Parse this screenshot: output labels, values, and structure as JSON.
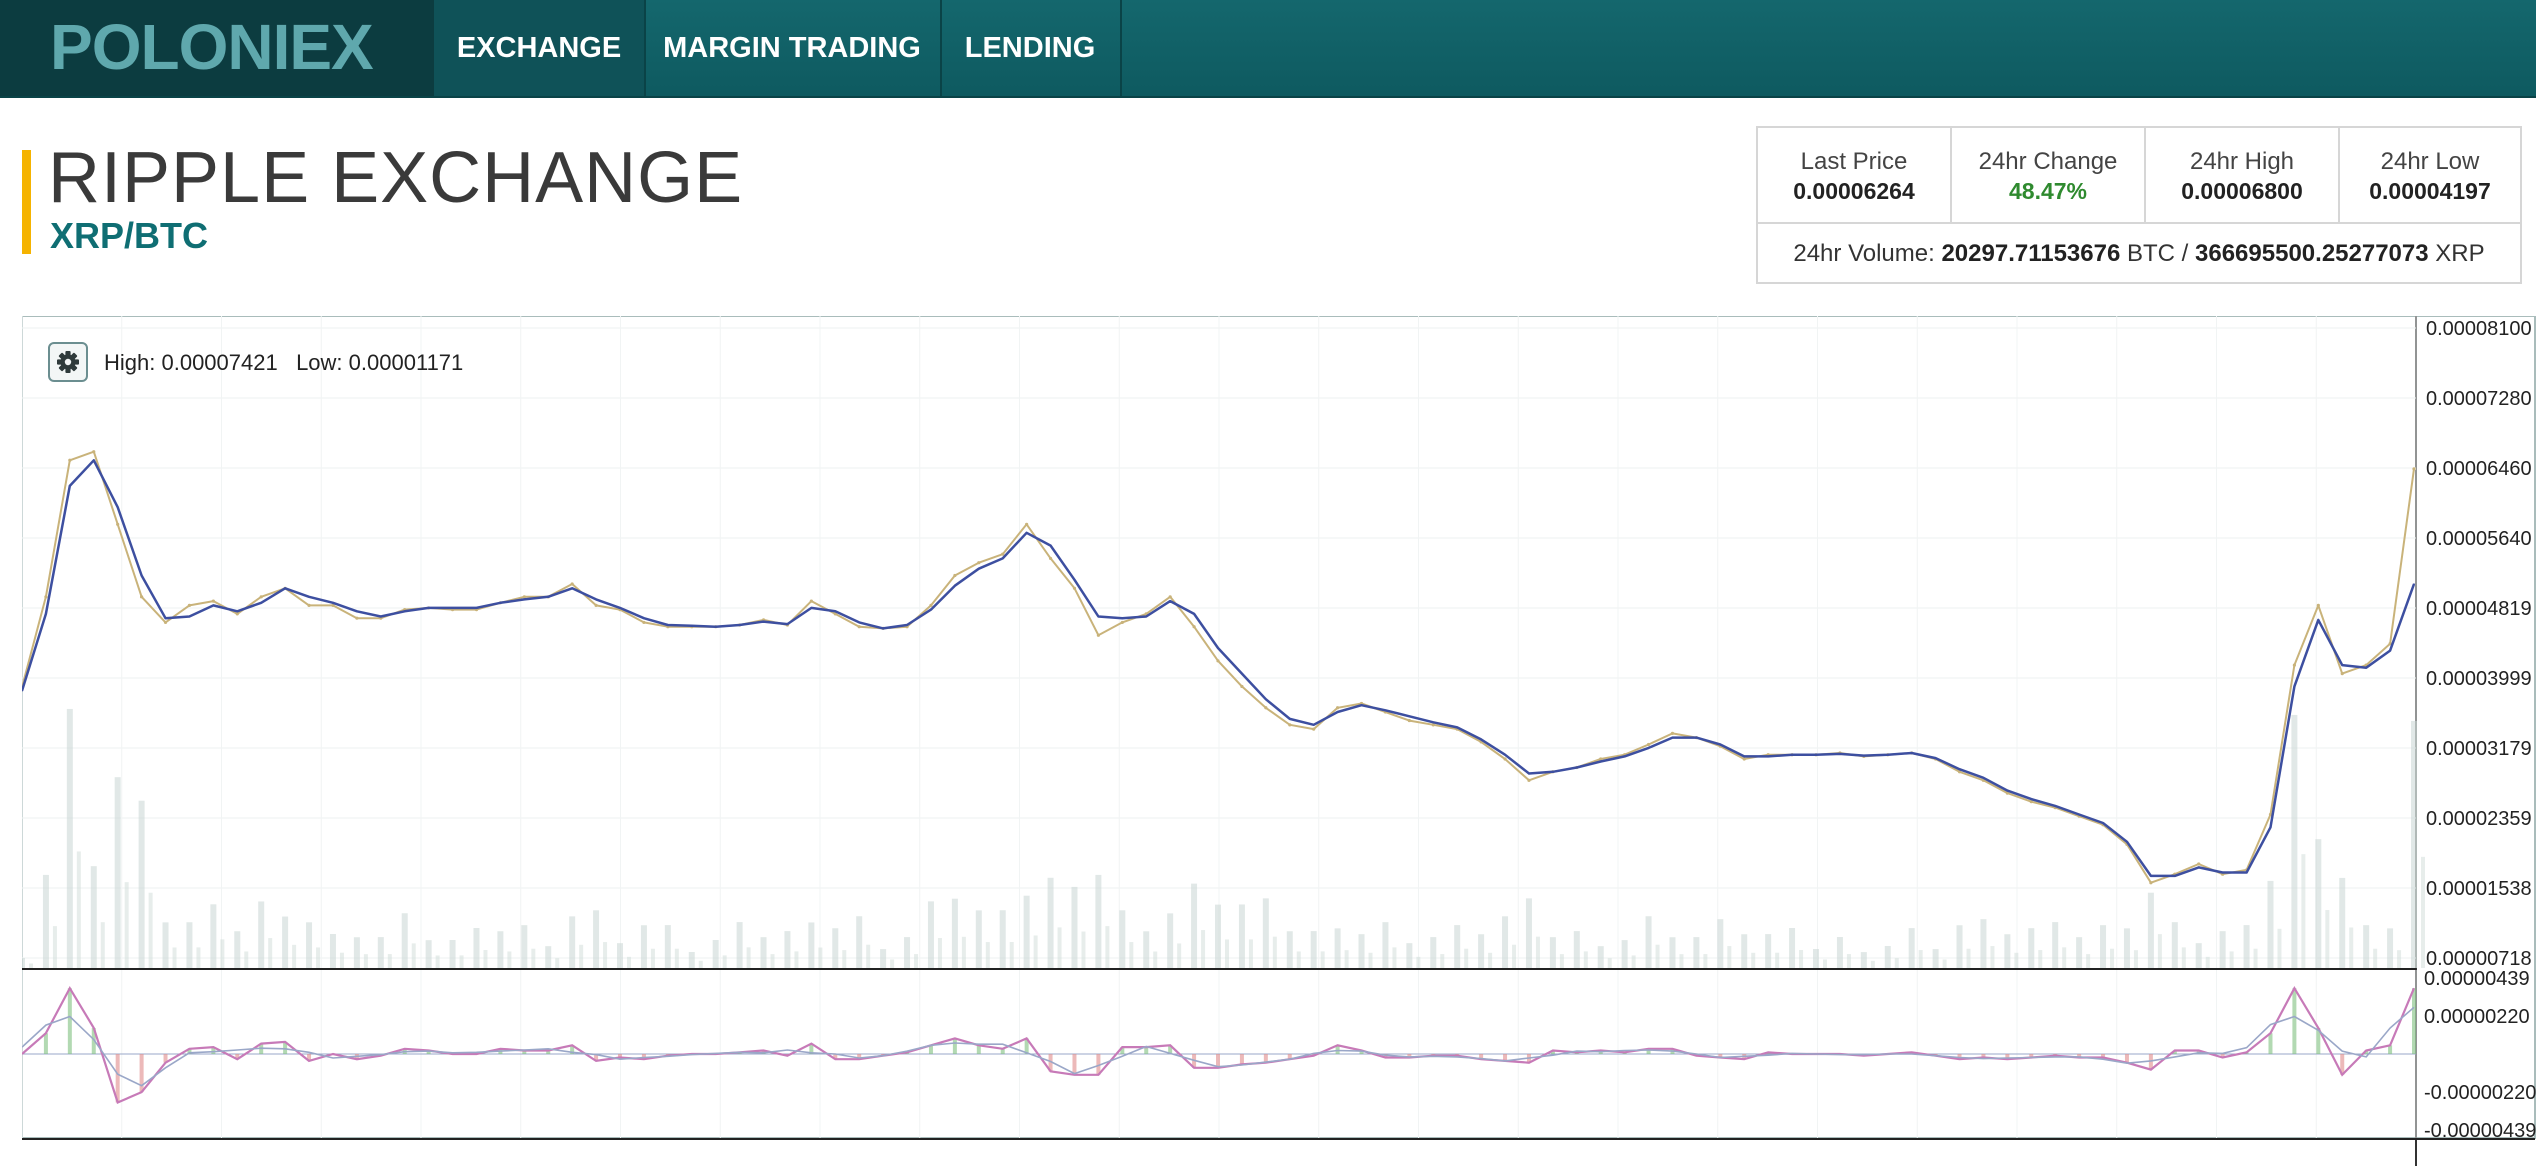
{
  "nav": {
    "logo": "POLONIEX",
    "items": [
      {
        "label": "EXCHANGE",
        "active": true
      },
      {
        "label": "MARGIN TRADING",
        "active": false
      },
      {
        "label": "LENDING",
        "active": false
      }
    ]
  },
  "header": {
    "title": "RIPPLE EXCHANGE",
    "pair": "XRP/BTC"
  },
  "stats": {
    "last_price_label": "Last Price",
    "last_price": "0.00006264",
    "change_label": "24hr Change",
    "change": "48.47%",
    "high_label": "24hr High",
    "high": "0.00006800",
    "low_label": "24hr Low",
    "low": "0.00004197",
    "volume_label": "24hr Volume:",
    "volume_btc": "20297.71153676",
    "volume_btc_unit": "BTC /",
    "volume_xrp": "366695500.25277073",
    "volume_xrp_unit": "XRP"
  },
  "chart_toolbar": {
    "settings_icon": "gear-icon",
    "high_label": "High:",
    "high_value": "0.00007421",
    "low_label": "Low:",
    "low_value": "0.00001171"
  },
  "colors": {
    "nav_bg": "#0e5a60",
    "accent": "#f5b300",
    "pair": "#0f6e73",
    "positive": "#2f8a2f",
    "ma_line": "#3d4fa0",
    "price_line": "#c9b37a",
    "volume": "#c9d6d3",
    "osc_line1": "#c77ab8",
    "osc_line2": "#9aa7c8"
  },
  "chart_data": [
    {
      "type": "line",
      "title": "",
      "xlabel": "",
      "ylabel": "",
      "y_ticks": [
        "0.00008100",
        "0.00007280",
        "0.00006460",
        "0.00005640",
        "0.00004819",
        "0.00003999",
        "0.00003179",
        "0.00002359",
        "0.00001538",
        "0.00000718"
      ],
      "ylim": [
        7.18e-06,
        8.1e-05
      ],
      "grid": true,
      "x": [
        0,
        1,
        2,
        3,
        4,
        5,
        6,
        7,
        8,
        9,
        10,
        11,
        12,
        13,
        14,
        15,
        16,
        17,
        18,
        19,
        20,
        21,
        22,
        23,
        24,
        25,
        26,
        27,
        28,
        29,
        30,
        31,
        32,
        33,
        34,
        35,
        36,
        37,
        38,
        39,
        40,
        41,
        42,
        43,
        44,
        45,
        46,
        47,
        48,
        49,
        50,
        51,
        52,
        53,
        54,
        55,
        56,
        57,
        58,
        59,
        60,
        61,
        62,
        63,
        64,
        65,
        66,
        67,
        68,
        69,
        70,
        71,
        72,
        73,
        74,
        75,
        76,
        77,
        78,
        79,
        80,
        81,
        82,
        83,
        84,
        85,
        86,
        87,
        88,
        89,
        90,
        91,
        92,
        93,
        94,
        95,
        96,
        97,
        98,
        99,
        100
      ],
      "series": [
        {
          "name": "",
          "role": "price",
          "values": [
            3.89e-05,
            4.95e-05,
            6.55e-05,
            6.65e-05,
            5.8e-05,
            4.95e-05,
            4.65e-05,
            4.85e-05,
            4.9e-05,
            4.75e-05,
            4.95e-05,
            5.05e-05,
            4.85e-05,
            4.85e-05,
            4.7e-05,
            4.7e-05,
            4.8e-05,
            4.82e-05,
            4.8e-05,
            4.8e-05,
            4.88e-05,
            4.95e-05,
            4.95e-05,
            5.1e-05,
            4.85e-05,
            4.8e-05,
            4.65e-05,
            4.6e-05,
            4.6e-05,
            4.6e-05,
            4.62e-05,
            4.68e-05,
            4.62e-05,
            4.9e-05,
            4.75e-05,
            4.6e-05,
            4.58e-05,
            4.6e-05,
            4.85e-05,
            5.2e-05,
            5.35e-05,
            5.45e-05,
            5.8e-05,
            5.4e-05,
            5.05e-05,
            4.5e-05,
            4.65e-05,
            4.75e-05,
            4.95e-05,
            4.6e-05,
            4.2e-05,
            3.9e-05,
            3.65e-05,
            3.45e-05,
            3.4e-05,
            3.65e-05,
            3.7e-05,
            3.6e-05,
            3.5e-05,
            3.45e-05,
            3.4e-05,
            3.25e-05,
            3.05e-05,
            2.8e-05,
            2.9e-05,
            2.95e-05,
            3.05e-05,
            3.1e-05,
            3.22e-05,
            3.35e-05,
            3.3e-05,
            3.2e-05,
            3.05e-05,
            3.1e-05,
            3.1e-05,
            3.1e-05,
            3.12e-05,
            3.08e-05,
            3.1e-05,
            3.12e-05,
            3.05e-05,
            2.9e-05,
            2.8e-05,
            2.65e-05,
            2.55e-05,
            2.48e-05,
            2.38e-05,
            2.28e-05,
            2.05e-05,
            1.6e-05,
            1.7e-05,
            1.82e-05,
            1.7e-05,
            1.75e-05,
            2.4e-05,
            4.15e-05,
            4.85e-05,
            4.05e-05,
            4.15e-05,
            4.4e-05,
            6.45e-05
          ]
        },
        {
          "name": "",
          "role": "moving-average",
          "values": [
            3.85e-05,
            4.75e-05,
            6.25e-05,
            6.55e-05,
            6e-05,
            5.2e-05,
            4.7e-05,
            4.72e-05,
            4.85e-05,
            4.78e-05,
            4.88e-05,
            5.05e-05,
            4.95e-05,
            4.88e-05,
            4.78e-05,
            4.72e-05,
            4.78e-05,
            4.82e-05,
            4.82e-05,
            4.82e-05,
            4.88e-05,
            4.92e-05,
            4.95e-05,
            5.05e-05,
            4.92e-05,
            4.82e-05,
            4.7e-05,
            4.62e-05,
            4.61e-05,
            4.6e-05,
            4.62e-05,
            4.66e-05,
            4.63e-05,
            4.82e-05,
            4.78e-05,
            4.65e-05,
            4.58e-05,
            4.62e-05,
            4.8e-05,
            5.08e-05,
            5.28e-05,
            5.4e-05,
            5.7e-05,
            5.55e-05,
            5.15e-05,
            4.72e-05,
            4.7e-05,
            4.72e-05,
            4.9e-05,
            4.75e-05,
            4.35e-05,
            4.05e-05,
            3.75e-05,
            3.52e-05,
            3.45e-05,
            3.6e-05,
            3.68e-05,
            3.62e-05,
            3.55e-05,
            3.48e-05,
            3.42e-05,
            3.28e-05,
            3.1e-05,
            2.88e-05,
            2.9e-05,
            2.95e-05,
            3.02e-05,
            3.08e-05,
            3.18e-05,
            3.3e-05,
            3.3e-05,
            3.22e-05,
            3.08e-05,
            3.08e-05,
            3.1e-05,
            3.1e-05,
            3.11e-05,
            3.09e-05,
            3.1e-05,
            3.12e-05,
            3.06e-05,
            2.93e-05,
            2.83e-05,
            2.68e-05,
            2.58e-05,
            2.5e-05,
            2.4e-05,
            2.3e-05,
            2.08e-05,
            1.68e-05,
            1.68e-05,
            1.78e-05,
            1.72e-05,
            1.72e-05,
            2.25e-05,
            3.9e-05,
            4.68e-05,
            4.15e-05,
            4.12e-05,
            4.32e-05,
            5.1e-05
          ]
        }
      ]
    },
    {
      "type": "line",
      "title": "",
      "y_ticks": [
        "0.00000439",
        "0.00000220",
        "-0.00000220",
        "-0.00000439"
      ],
      "ylim": [
        -4.39e-06,
        4.39e-06
      ],
      "series": [
        {
          "name": "",
          "role": "oscillator",
          "values": [
            0.0,
            1.2e-06,
            3.8e-06,
            1.5e-06,
            -2.8e-06,
            -2.2e-06,
            -5e-07,
            3e-07,
            4e-07,
            -3e-07,
            6e-07,
            7e-07,
            -4e-07,
            0.0,
            -3e-07,
            -1e-07,
            3e-07,
            2e-07,
            0.0,
            0.0,
            3e-07,
            2e-07,
            2e-07,
            5e-07,
            -4e-07,
            -2e-07,
            -3e-07,
            -1e-07,
            0.0,
            0.0,
            1e-07,
            2e-07,
            -1e-07,
            6e-07,
            -3e-07,
            -3e-07,
            -1e-07,
            1e-07,
            5e-07,
            9e-07,
            5e-07,
            3e-07,
            9e-07,
            -1e-06,
            -1.2e-06,
            -1.2e-06,
            4e-07,
            4e-07,
            5e-07,
            -8e-07,
            -8e-07,
            -6e-07,
            -5e-07,
            -3e-07,
            -1e-07,
            5e-07,
            2e-07,
            -2e-07,
            -2e-07,
            -1e-07,
            -1e-07,
            -3e-07,
            -4e-07,
            -5e-07,
            2e-07,
            1e-07,
            2e-07,
            1e-07,
            3e-07,
            3e-07,
            -1e-07,
            -2e-07,
            -3e-07,
            1e-07,
            0.0,
            0.0,
            0.0,
            -1e-07,
            0.0,
            1e-07,
            -1e-07,
            -3e-07,
            -2e-07,
            -3e-07,
            -2e-07,
            -1e-07,
            -2e-07,
            -2e-07,
            -5e-07,
            -9e-07,
            2e-07,
            2e-07,
            -2e-07,
            1e-07,
            1.2e-06,
            3.8e-06,
            1.5e-06,
            -1.2e-06,
            2e-07,
            5e-07,
            3.8e-06
          ]
        }
      ]
    }
  ]
}
